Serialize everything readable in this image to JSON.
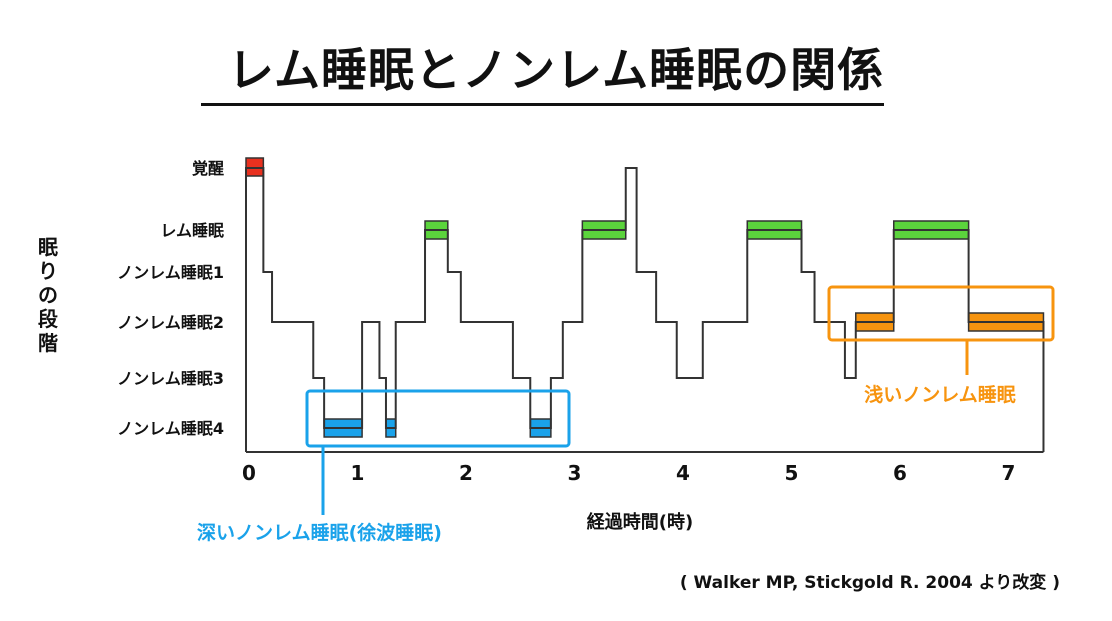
{
  "title": "レム睡眠とノンレム睡眠の関係",
  "source": "( Walker MP, Stickgold R. 2004 より改変 )",
  "colors": {
    "line": "#333333",
    "wake": "#e8311f",
    "rem": "#5bd43c",
    "deep": "#1aa2ea",
    "light": "#f7940f"
  },
  "chart_data": {
    "type": "line",
    "title": "",
    "xlabel": "経過時間(時)",
    "ylabel": "眠りの段階",
    "xlim": [
      0,
      7.35
    ],
    "x_ticks": [
      "0",
      "1",
      "2",
      "3",
      "4",
      "5",
      "6",
      "7"
    ],
    "y_categories": [
      "覚醒",
      "レム睡眠",
      "ノンレム睡眠1",
      "ノンレム睡眠2",
      "ノンレム睡眠3",
      "ノンレム睡眠4"
    ],
    "stage_levels": [
      0,
      1,
      2,
      3,
      4,
      5
    ],
    "hypnogram": [
      {
        "x": 0.0,
        "stage": 0
      },
      {
        "x": 0.16,
        "stage": 2
      },
      {
        "x": 0.24,
        "stage": 3
      },
      {
        "x": 0.62,
        "stage": 4
      },
      {
        "x": 0.72,
        "stage": 5
      },
      {
        "x": 1.07,
        "stage": 3
      },
      {
        "x": 1.23,
        "stage": 4
      },
      {
        "x": 1.29,
        "stage": 5
      },
      {
        "x": 1.38,
        "stage": 3
      },
      {
        "x": 1.65,
        "stage": 1
      },
      {
        "x": 1.86,
        "stage": 2
      },
      {
        "x": 1.98,
        "stage": 3
      },
      {
        "x": 2.46,
        "stage": 4
      },
      {
        "x": 2.62,
        "stage": 5
      },
      {
        "x": 2.81,
        "stage": 4
      },
      {
        "x": 2.92,
        "stage": 3
      },
      {
        "x": 3.1,
        "stage": 1
      },
      {
        "x": 3.5,
        "stage": 0
      },
      {
        "x": 3.6,
        "stage": 2
      },
      {
        "x": 3.78,
        "stage": 3
      },
      {
        "x": 3.97,
        "stage": 4
      },
      {
        "x": 4.21,
        "stage": 3
      },
      {
        "x": 4.62,
        "stage": 1
      },
      {
        "x": 5.12,
        "stage": 2
      },
      {
        "x": 5.24,
        "stage": 3
      },
      {
        "x": 5.52,
        "stage": 4
      },
      {
        "x": 5.62,
        "stage": 3
      },
      {
        "x": 5.97,
        "stage": 1
      },
      {
        "x": 6.66,
        "stage": 3
      },
      {
        "x": 7.35,
        "stage": 3
      }
    ],
    "highlight_blocks": [
      {
        "x0": 0.0,
        "x1": 0.16,
        "stage": 0,
        "color_key": "wake"
      },
      {
        "x0": 1.65,
        "x1": 1.86,
        "stage": 1,
        "color_key": "rem"
      },
      {
        "x0": 3.1,
        "x1": 3.5,
        "stage": 1,
        "color_key": "rem"
      },
      {
        "x0": 4.62,
        "x1": 5.12,
        "stage": 1,
        "color_key": "rem"
      },
      {
        "x0": 5.97,
        "x1": 6.66,
        "stage": 1,
        "color_key": "rem"
      },
      {
        "x0": 0.72,
        "x1": 1.07,
        "stage": 5,
        "color_key": "deep"
      },
      {
        "x0": 1.29,
        "x1": 1.38,
        "stage": 5,
        "color_key": "deep"
      },
      {
        "x0": 2.62,
        "x1": 2.81,
        "stage": 5,
        "color_key": "deep"
      },
      {
        "x0": 5.62,
        "x1": 5.97,
        "stage": 3,
        "color_key": "light"
      },
      {
        "x0": 6.66,
        "x1": 7.35,
        "stage": 3,
        "color_key": "light"
      }
    ],
    "annotations": [
      {
        "text": "深いノンレム睡眠(徐波睡眠)",
        "color_key": "deep"
      },
      {
        "text": "浅いノンレム睡眠",
        "color_key": "light"
      }
    ]
  }
}
